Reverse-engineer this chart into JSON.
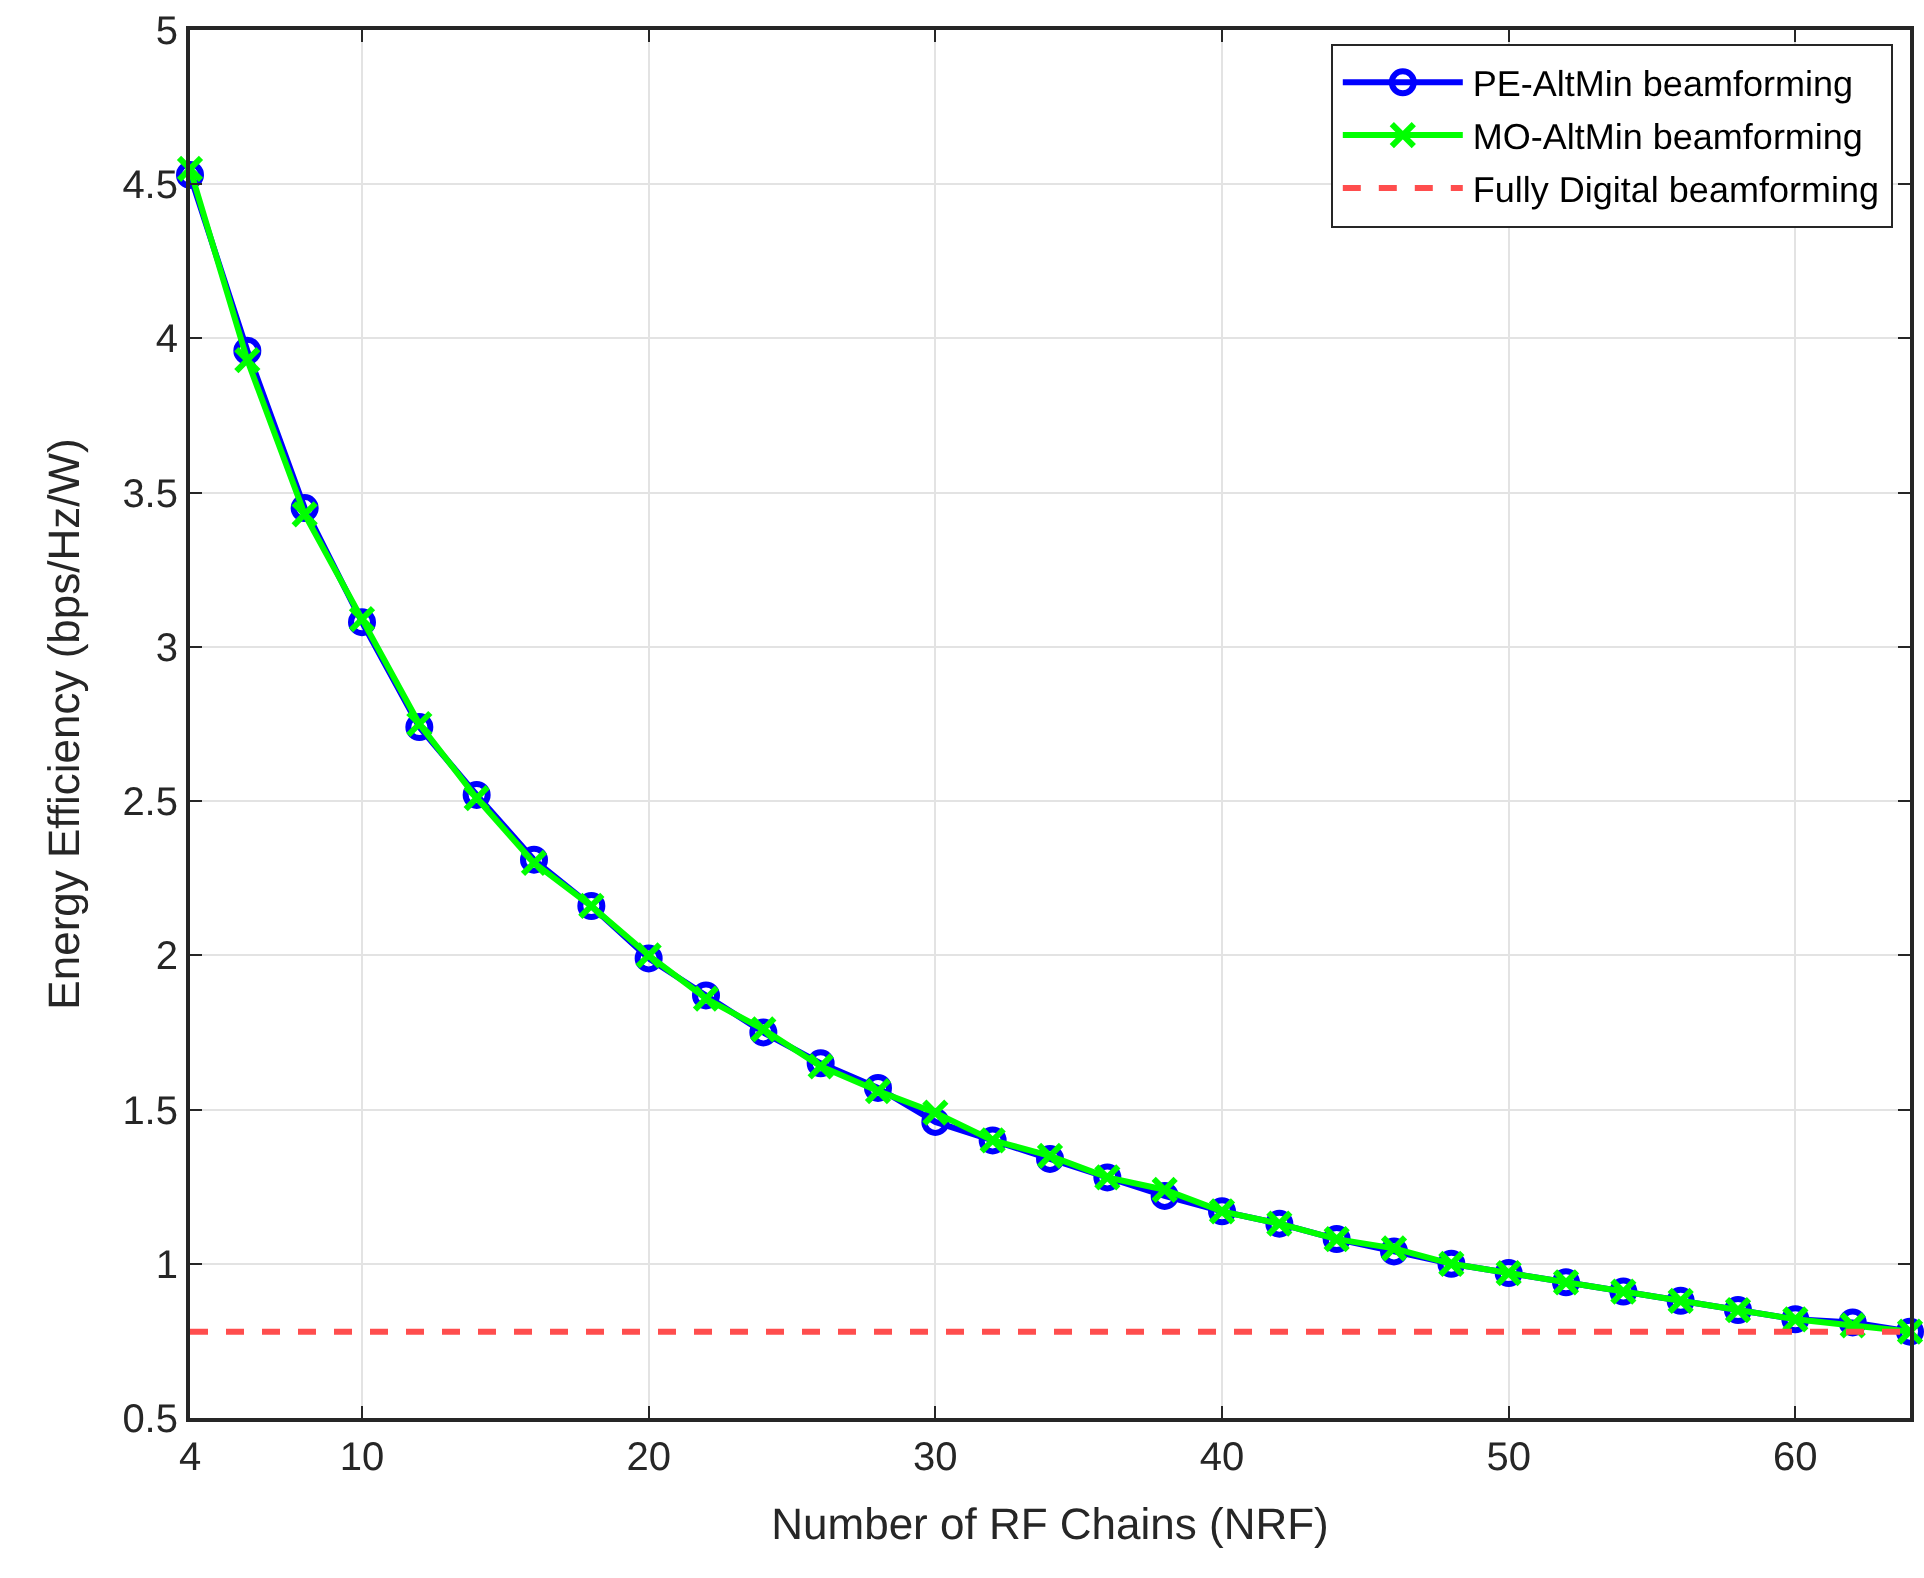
{
  "chart_data": {
    "type": "line",
    "xlabel": "Number of RF Chains (NRF)",
    "ylabel": "Energy Efficiency (bps/Hz/W)",
    "x": [
      4,
      6,
      8,
      10,
      12,
      14,
      16,
      18,
      20,
      22,
      24,
      26,
      28,
      30,
      32,
      34,
      36,
      38,
      40,
      42,
      44,
      46,
      48,
      50,
      52,
      54,
      56,
      58,
      60,
      62,
      64
    ],
    "series": [
      {
        "name": "PE-AltMin beamforming",
        "color": "#0000ff",
        "marker": "circle",
        "line_style": "solid",
        "values": [
          4.53,
          3.96,
          3.45,
          3.08,
          2.74,
          2.52,
          2.31,
          2.16,
          1.99,
          1.87,
          1.75,
          1.65,
          1.57,
          1.46,
          1.4,
          1.34,
          1.28,
          1.22,
          1.17,
          1.13,
          1.08,
          1.04,
          1.0,
          0.97,
          0.94,
          0.91,
          0.88,
          0.85,
          0.82,
          0.81,
          0.78
        ]
      },
      {
        "name": "MO-AltMin beamforming",
        "color": "#00ff00",
        "marker": "cross",
        "line_style": "solid",
        "values": [
          4.55,
          3.93,
          3.43,
          3.09,
          2.75,
          2.51,
          2.3,
          2.16,
          2.0,
          1.86,
          1.76,
          1.64,
          1.56,
          1.49,
          1.4,
          1.35,
          1.28,
          1.24,
          1.17,
          1.13,
          1.08,
          1.05,
          1.0,
          0.97,
          0.94,
          0.91,
          0.88,
          0.85,
          0.82,
          0.8,
          0.78
        ]
      },
      {
        "name": "Fully Digital beamforming",
        "color": "#ff4d4d",
        "marker": "none",
        "line_style": "dashed",
        "x": [
          4,
          64
        ],
        "values": [
          0.78,
          0.78
        ]
      }
    ],
    "xlim": [
      4,
      64
    ],
    "xticks": [
      4,
      10,
      20,
      30,
      40,
      50,
      60
    ],
    "ylim": [
      0.5,
      5
    ],
    "yticks": [
      0.5,
      1,
      1.5,
      2,
      2.5,
      3,
      3.5,
      4,
      4.5,
      5
    ],
    "grid": true,
    "legend": "top right"
  }
}
